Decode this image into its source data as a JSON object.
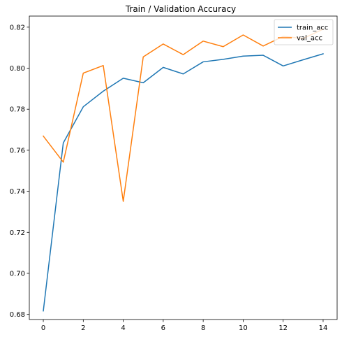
{
  "chart_data": {
    "type": "line",
    "title": "Train / Validation Accuracy",
    "xlabel": "",
    "ylabel": "",
    "xlim": [
      -0.7,
      14.7
    ],
    "ylim": [
      0.6775,
      0.8254
    ],
    "x": [
      0,
      1,
      2,
      3,
      4,
      5,
      6,
      7,
      8,
      9,
      10,
      11,
      12,
      13,
      14
    ],
    "xticks": [
      0,
      2,
      4,
      6,
      8,
      10,
      12,
      14
    ],
    "yticks": [
      0.68,
      0.7,
      0.72,
      0.74,
      0.76,
      0.78,
      0.8,
      0.82
    ],
    "grid": false,
    "legend_position": "top-right",
    "series": [
      {
        "name": "train_acc",
        "color": "#1f77b4",
        "values": [
          0.6817,
          0.7636,
          0.7812,
          0.7888,
          0.7951,
          0.7929,
          0.8004,
          0.7972,
          0.8031,
          0.8043,
          0.8059,
          0.8063,
          0.8011,
          0.8041,
          0.807
        ]
      },
      {
        "name": "val_acc",
        "color": "#ff7f0e",
        "values": [
          0.7669,
          0.7542,
          0.7976,
          0.8013,
          0.7351,
          0.8055,
          0.8118,
          0.8066,
          0.8132,
          0.8105,
          0.8162,
          0.8108,
          0.8155,
          0.8145,
          0.819
        ]
      }
    ]
  }
}
